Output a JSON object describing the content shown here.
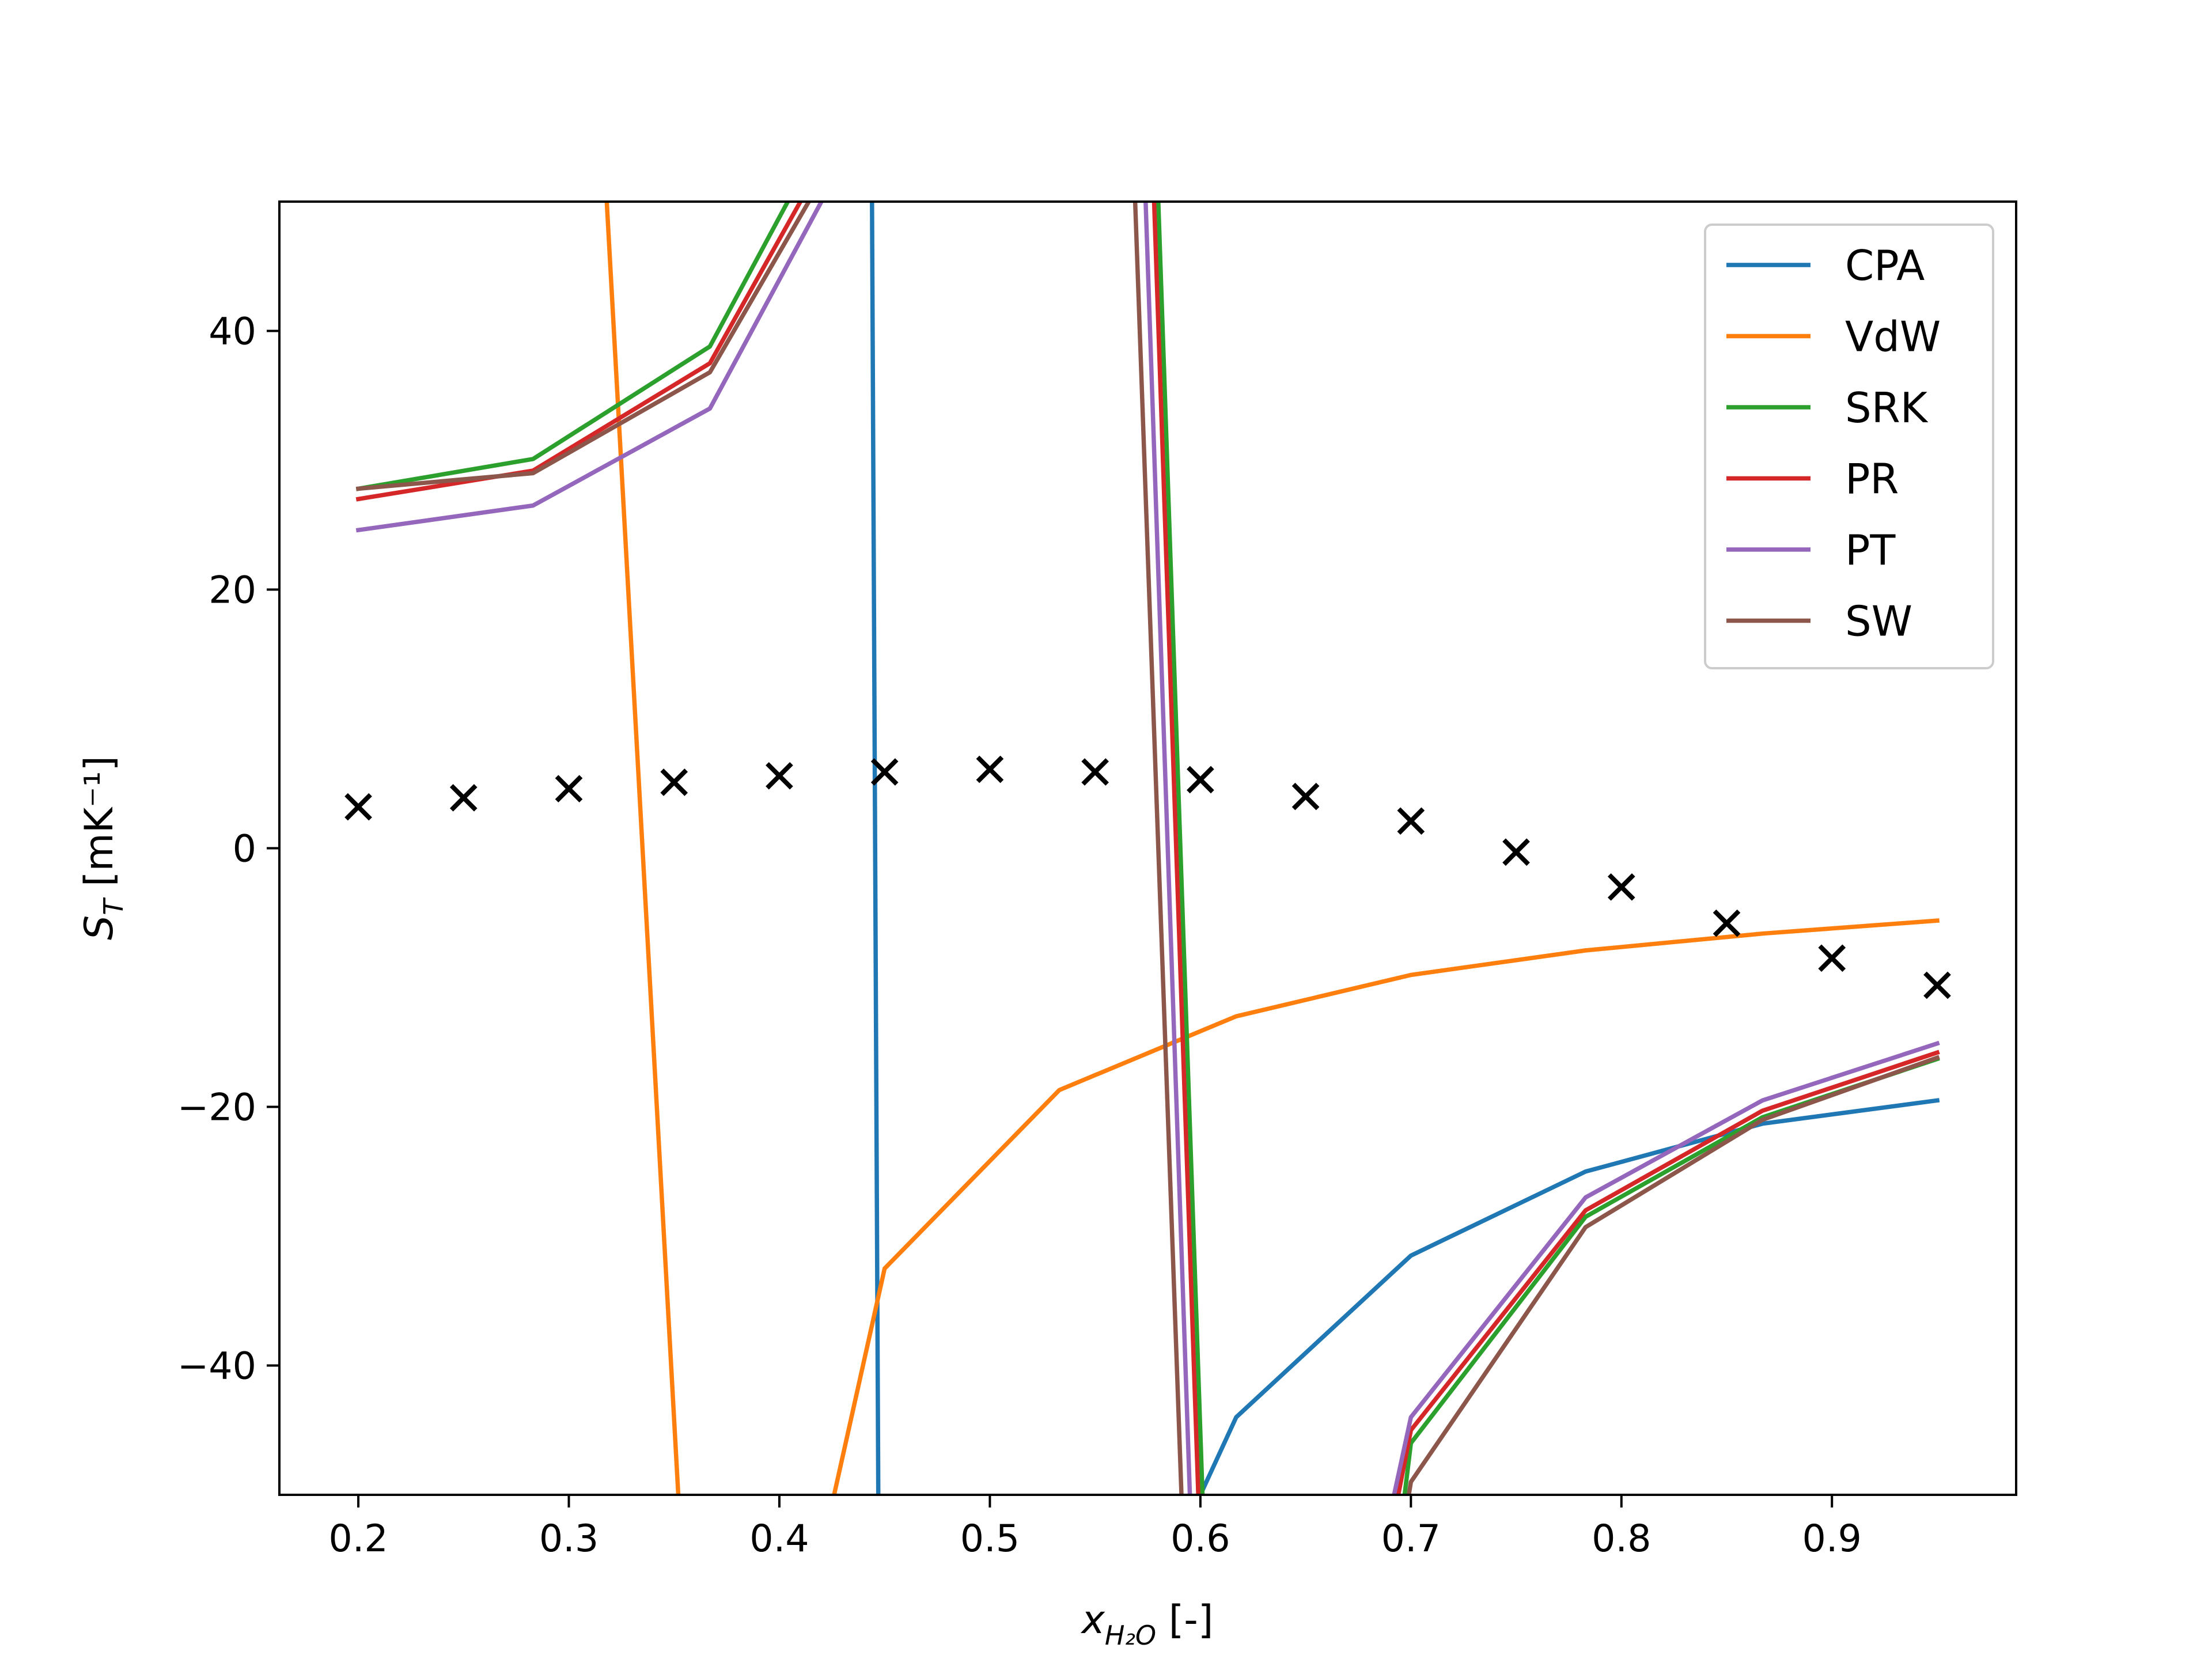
{
  "chart_data": {
    "type": "line",
    "xlabel": {
      "main": "x",
      "sub": "H₂O",
      "suffix": " [-]"
    },
    "ylabel": {
      "main": "S",
      "sub": "T",
      "suffix": " [mK⁻¹]"
    },
    "xlim": [
      0.1625,
      0.9875
    ],
    "ylim": [
      -50,
      50
    ],
    "xticks": [
      0.2,
      0.3,
      0.4,
      0.5,
      0.6,
      0.7,
      0.8,
      0.9
    ],
    "xtick_labels": [
      "0.2",
      "0.3",
      "0.4",
      "0.5",
      "0.6",
      "0.7",
      "0.8",
      "0.9"
    ],
    "yticks": [
      -40,
      -20,
      0,
      20,
      40
    ],
    "ytick_labels": [
      "−40",
      "−20",
      "0",
      "20",
      "40"
    ],
    "grid": false,
    "legend_position": "top-right",
    "series": [
      {
        "name": "CPA",
        "color": "#1f77b4",
        "segments": [
          [
            [
              0.444,
              50
            ],
            [
              0.447,
              -50
            ]
          ],
          [
            [
              0.6,
              -50
            ],
            [
              0.617,
              -44.0
            ],
            [
              0.7,
              -31.5
            ],
            [
              0.783,
              -25.0
            ],
            [
              0.867,
              -21.3
            ],
            [
              0.95,
              -19.5
            ]
          ]
        ]
      },
      {
        "name": "VdW",
        "color": "#ff7f0e",
        "segments": [
          [
            [
              0.318,
              50
            ],
            [
              0.352,
              -50
            ]
          ],
          [
            [
              0.426,
              -50
            ],
            [
              0.45,
              -32.5
            ],
            [
              0.533,
              -18.7
            ],
            [
              0.617,
              -13.0
            ],
            [
              0.7,
              -9.8
            ],
            [
              0.783,
              -7.9
            ],
            [
              0.867,
              -6.6
            ],
            [
              0.95,
              -5.6
            ]
          ]
        ]
      },
      {
        "name": "SRK",
        "color": "#2ca02c",
        "segments": [
          [
            [
              0.2,
              27.8
            ],
            [
              0.283,
              30.1
            ],
            [
              0.367,
              38.8
            ],
            [
              0.404,
              50
            ]
          ],
          [
            [
              0.58,
              50
            ],
            [
              0.601,
              -50
            ]
          ],
          [
            [
              0.697,
              -50
            ],
            [
              0.7,
              -46.0
            ],
            [
              0.783,
              -28.5
            ],
            [
              0.867,
              -20.8
            ],
            [
              0.95,
              -16.3
            ]
          ]
        ]
      },
      {
        "name": "PR",
        "color": "#d62728",
        "segments": [
          [
            [
              0.2,
              27.0
            ],
            [
              0.283,
              29.2
            ],
            [
              0.367,
              37.5
            ],
            [
              0.41,
              50
            ]
          ],
          [
            [
              0.578,
              50
            ],
            [
              0.599,
              -50
            ]
          ],
          [
            [
              0.694,
              -50
            ],
            [
              0.7,
              -45.0
            ],
            [
              0.783,
              -28.0
            ],
            [
              0.867,
              -20.3
            ],
            [
              0.95,
              -15.8
            ]
          ]
        ]
      },
      {
        "name": "PT",
        "color": "#9467bd",
        "segments": [
          [
            [
              0.2,
              24.6
            ],
            [
              0.283,
              26.5
            ],
            [
              0.367,
              34.0
            ],
            [
              0.42,
              50
            ]
          ],
          [
            [
              0.574,
              50
            ],
            [
              0.595,
              -50
            ]
          ],
          [
            [
              0.692,
              -50
            ],
            [
              0.7,
              -44.0
            ],
            [
              0.783,
              -27.0
            ],
            [
              0.867,
              -19.5
            ],
            [
              0.95,
              -15.1
            ]
          ]
        ]
      },
      {
        "name": "SW",
        "color": "#8c564b",
        "segments": [
          [
            [
              0.2,
              27.8
            ],
            [
              0.283,
              29.0
            ],
            [
              0.367,
              36.8
            ],
            [
              0.414,
              50
            ]
          ],
          [
            [
              0.569,
              50
            ],
            [
              0.591,
              -50
            ]
          ],
          [
            [
              0.699,
              -50
            ],
            [
              0.7,
              -49.0
            ],
            [
              0.783,
              -29.3
            ],
            [
              0.867,
              -21.0
            ],
            [
              0.95,
              -16.2
            ]
          ]
        ]
      }
    ],
    "markers": {
      "style": "x",
      "color": "#000000",
      "x": [
        0.2,
        0.25,
        0.3,
        0.35,
        0.4,
        0.45,
        0.5,
        0.55,
        0.6,
        0.65,
        0.7,
        0.75,
        0.8,
        0.85,
        0.9,
        0.95
      ],
      "y": [
        3.2,
        3.9,
        4.6,
        5.1,
        5.6,
        5.9,
        6.1,
        5.9,
        5.3,
        4.0,
        2.1,
        -0.3,
        -3.0,
        -5.8,
        -8.5,
        -10.6
      ]
    }
  }
}
